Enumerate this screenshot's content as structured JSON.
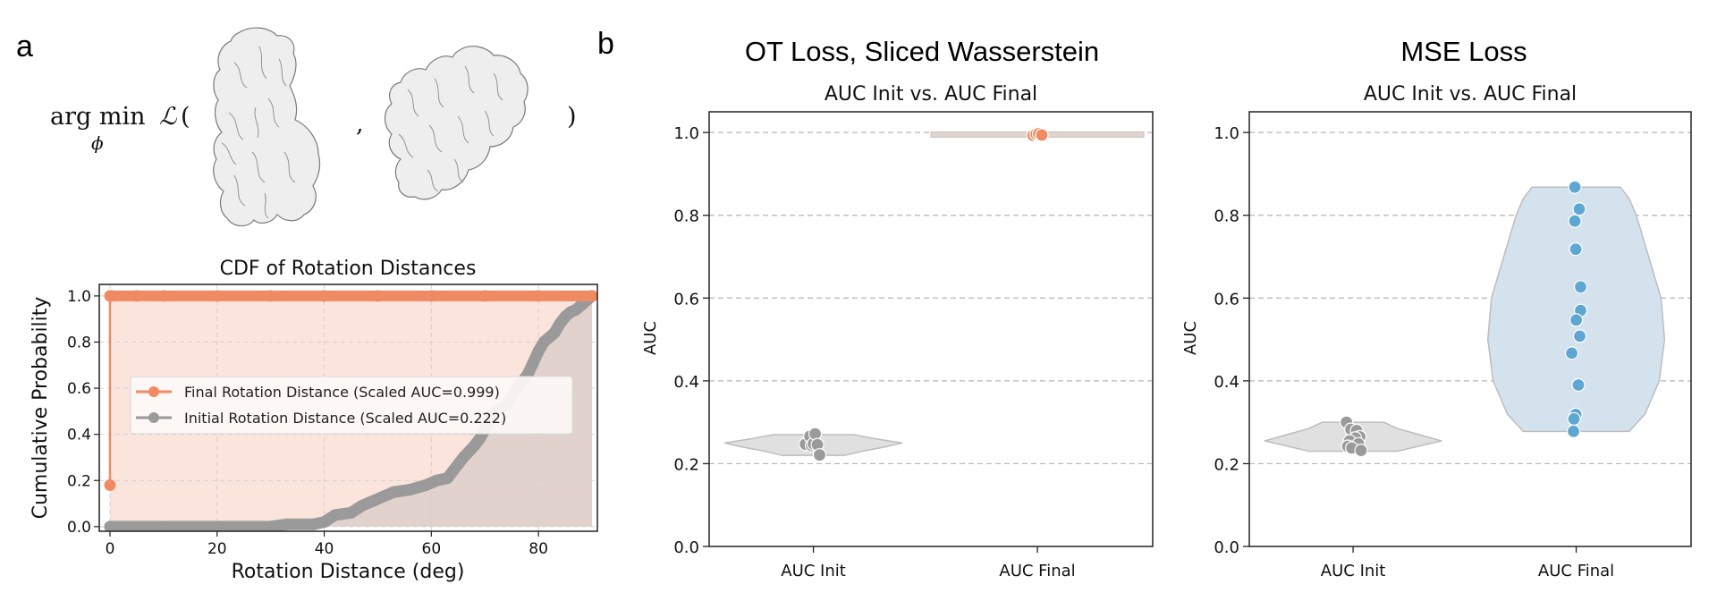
{
  "figure": {
    "panel_a_label": "a",
    "panel_b_label": "b",
    "formula": {
      "operator": "arg min",
      "subscript": "ϕ",
      "loss_symbol": "ℒ",
      "open_paren": "(",
      "comma": ",",
      "close_paren": ")"
    },
    "protein_images": [
      "protein-structure-1",
      "protein-structure-2"
    ]
  },
  "colors": {
    "orange": "#f08a63",
    "orange_fill": "#fbe4dc",
    "gray": "#9a9a9a",
    "gray_fill": "#e2d5d0",
    "blue": "#5fa7d3",
    "blue_fill": "#d4e2ee",
    "violin_gray": "#e0e0e0",
    "violin_edge": "#bdbdbd"
  },
  "chart_data": [
    {
      "id": "cdf",
      "type": "line",
      "title": "CDF of Rotation Distances",
      "xlabel": "Rotation Distance (deg)",
      "ylabel": "Cumulative Probability",
      "xlim": [
        -2,
        91
      ],
      "ylim": [
        -0.02,
        1.05
      ],
      "xticks": [
        0,
        20,
        40,
        60,
        80
      ],
      "xtick_labels": [
        "0",
        "20",
        "40",
        "60",
        "80"
      ],
      "yticks": [
        0.0,
        0.2,
        0.4,
        0.6,
        0.8,
        1.0
      ],
      "ytick_labels": [
        "0.0",
        "0.2",
        "0.4",
        "0.6",
        "0.8",
        "1.0"
      ],
      "grid": true,
      "legend_position": "center",
      "series": [
        {
          "name": "Final Rotation Distance (Scaled AUC=0.999)",
          "color_key": "orange",
          "x": [
            0,
            0,
            0.3,
            5,
            10,
            20,
            30,
            40,
            50,
            60,
            70,
            80,
            90
          ],
          "y": [
            0.18,
            1.0,
            1.0,
            1.0,
            1.0,
            1.0,
            1.0,
            1.0,
            1.0,
            1.0,
            1.0,
            1.0,
            1.0
          ]
        },
        {
          "name": "Initial Rotation Distance (Scaled AUC=0.222)",
          "color_key": "gray",
          "x": [
            0,
            10,
            20,
            30,
            33,
            38,
            40,
            42,
            45,
            47,
            49,
            51,
            53,
            56,
            59,
            61,
            63,
            64,
            66,
            68,
            69,
            70,
            72,
            74,
            76,
            78,
            79,
            80,
            81,
            82,
            83,
            84,
            85,
            86,
            87,
            88,
            89,
            90
          ],
          "y": [
            0.0,
            0.0,
            0.0,
            0.0,
            0.01,
            0.01,
            0.02,
            0.05,
            0.06,
            0.09,
            0.11,
            0.13,
            0.15,
            0.16,
            0.18,
            0.2,
            0.21,
            0.24,
            0.3,
            0.35,
            0.38,
            0.42,
            0.5,
            0.53,
            0.6,
            0.66,
            0.71,
            0.76,
            0.8,
            0.82,
            0.84,
            0.88,
            0.91,
            0.93,
            0.94,
            0.96,
            0.98,
            1.0
          ]
        }
      ]
    },
    {
      "id": "ot",
      "type": "violin",
      "suptitle": "OT Loss, Sliced Wasserstein",
      "title": "AUC Init vs. AUC Final",
      "ylabel": "AUC",
      "categories": [
        "AUC Init",
        "AUC Final"
      ],
      "ylim": [
        0,
        1.05
      ],
      "yticks": [
        0.0,
        0.2,
        0.4,
        0.6,
        0.8,
        1.0
      ],
      "ytick_labels": [
        "0.0",
        "0.2",
        "0.4",
        "0.6",
        "0.8",
        "1.0"
      ],
      "grid": "y-dashed",
      "series": [
        {
          "name": "AUC Init",
          "color_key": "gray",
          "violin_key": "violin_gray",
          "violin_range": [
            0.22,
            0.27
          ],
          "violin_profile": [
            [
              0.22,
              0.35
            ],
            [
              0.23,
              0.55
            ],
            [
              0.24,
              0.8
            ],
            [
              0.25,
              1.0
            ],
            [
              0.26,
              0.7
            ],
            [
              0.27,
              0.45
            ]
          ],
          "points": [
            {
              "y": 0.247,
              "dx": -0.18
            },
            {
              "y": 0.266,
              "dx": -0.08
            },
            {
              "y": 0.244,
              "dx": -0.04
            },
            {
              "y": 0.248,
              "dx": 0.0
            },
            {
              "y": 0.272,
              "dx": 0.04
            },
            {
              "y": 0.246,
              "dx": 0.09
            },
            {
              "y": 0.221,
              "dx": 0.14
            }
          ]
        },
        {
          "name": "AUC Final",
          "color_key": "orange",
          "violin_key": "gray_fill",
          "violin_range": [
            0.992,
            0.998
          ],
          "violin_profile": [
            [
              0.992,
              0.3
            ],
            [
              0.994,
              0.5
            ],
            [
              0.996,
              1.0
            ],
            [
              0.998,
              0.6
            ]
          ],
          "points": [
            {
              "y": 0.993,
              "dx": -0.1
            },
            {
              "y": 0.996,
              "dx": -0.03
            },
            {
              "y": 0.997,
              "dx": 0.03
            },
            {
              "y": 0.994,
              "dx": 0.1
            }
          ]
        }
      ]
    },
    {
      "id": "mse",
      "type": "violin",
      "suptitle": "MSE Loss",
      "title": "AUC Init vs. AUC Final",
      "ylabel": "AUC",
      "categories": [
        "AUC Init",
        "AUC Final"
      ],
      "ylim": [
        0,
        1.05
      ],
      "yticks": [
        0.0,
        0.2,
        0.4,
        0.6,
        0.8,
        1.0
      ],
      "ytick_labels": [
        "0.0",
        "0.2",
        "0.4",
        "0.6",
        "0.8",
        "1.0"
      ],
      "grid": "y-dashed",
      "series": [
        {
          "name": "AUC Init",
          "color_key": "gray",
          "violin_key": "violin_gray",
          "violin_range": [
            0.23,
            0.3
          ],
          "violin_profile": [
            [
              0.23,
              0.5
            ],
            [
              0.24,
              0.7
            ],
            [
              0.255,
              1.0
            ],
            [
              0.27,
              0.75
            ],
            [
              0.285,
              0.5
            ],
            [
              0.3,
              0.35
            ]
          ],
          "points": [
            {
              "y": 0.3,
              "dx": -0.15
            },
            {
              "y": 0.283,
              "dx": -0.05
            },
            {
              "y": 0.28,
              "dx": 0.08
            },
            {
              "y": 0.265,
              "dx": 0.15
            },
            {
              "y": 0.262,
              "dx": 0.05
            },
            {
              "y": 0.255,
              "dx": -0.08
            },
            {
              "y": 0.248,
              "dx": 0.12
            },
            {
              "y": 0.242,
              "dx": -0.12
            },
            {
              "y": 0.238,
              "dx": -0.03
            },
            {
              "y": 0.232,
              "dx": 0.18
            }
          ]
        },
        {
          "name": "AUC Final",
          "color_key": "blue",
          "violin_key": "blue_fill",
          "violin_range": [
            0.278,
            0.868
          ],
          "violin_profile": [
            [
              0.278,
              0.6
            ],
            [
              0.32,
              0.78
            ],
            [
              0.4,
              0.94
            ],
            [
              0.5,
              1.0
            ],
            [
              0.6,
              0.96
            ],
            [
              0.7,
              0.82
            ],
            [
              0.8,
              0.68
            ],
            [
              0.84,
              0.6
            ],
            [
              0.868,
              0.5
            ]
          ],
          "points": [
            {
              "y": 0.868,
              "dx": -0.03
            },
            {
              "y": 0.815,
              "dx": 0.07
            },
            {
              "y": 0.786,
              "dx": -0.03
            },
            {
              "y": 0.718,
              "dx": -0.01
            },
            {
              "y": 0.627,
              "dx": 0.1
            },
            {
              "y": 0.57,
              "dx": 0.1
            },
            {
              "y": 0.547,
              "dx": 0.0
            },
            {
              "y": 0.508,
              "dx": 0.08
            },
            {
              "y": 0.467,
              "dx": -0.1
            },
            {
              "y": 0.39,
              "dx": 0.05
            },
            {
              "y": 0.319,
              "dx": -0.01
            },
            {
              "y": 0.308,
              "dx": -0.05
            },
            {
              "y": 0.278,
              "dx": -0.06
            }
          ]
        }
      ]
    }
  ]
}
